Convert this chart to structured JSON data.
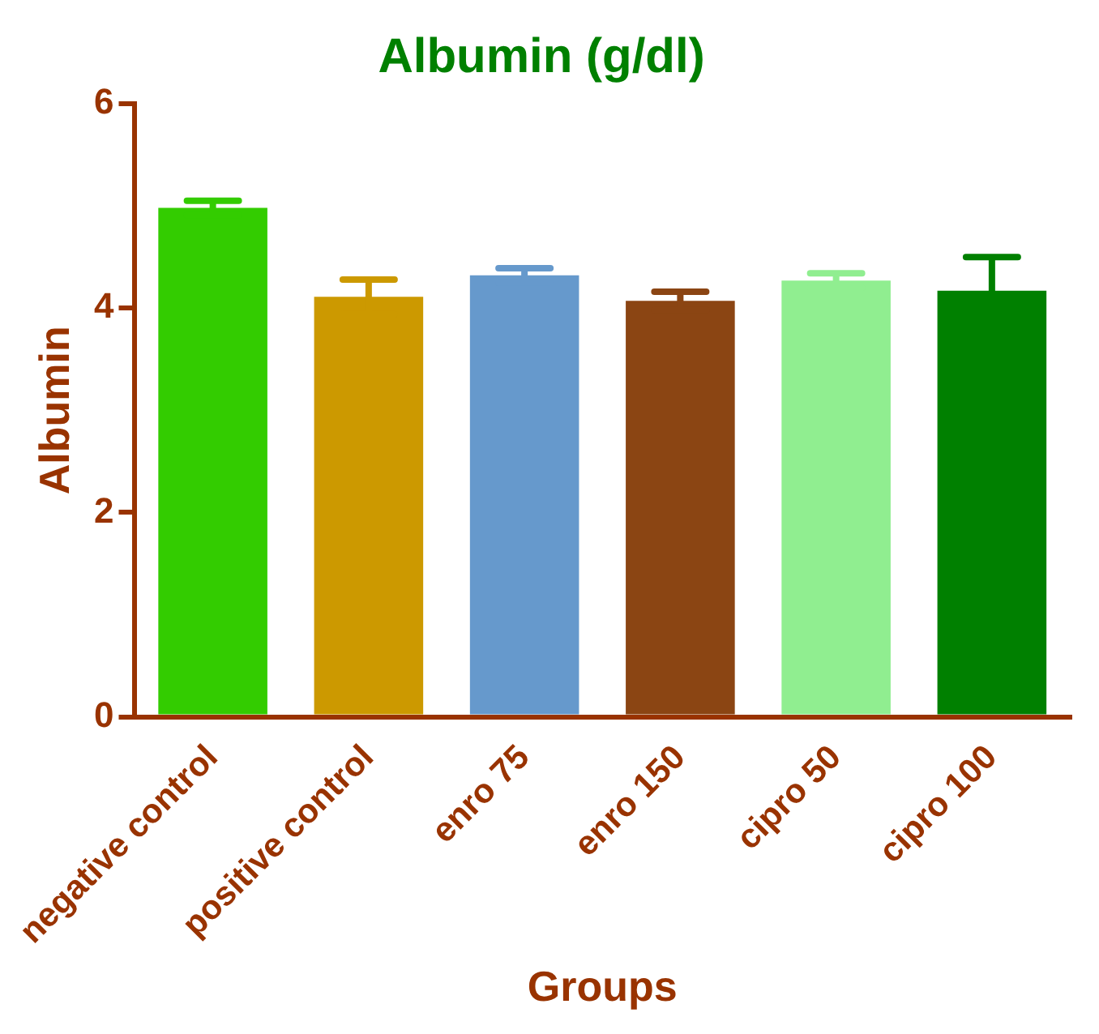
{
  "chart_data": {
    "type": "bar",
    "title": "Albumin (g/dl)",
    "xlabel": "Groups",
    "ylabel": "Albumin",
    "categories": [
      "negative control",
      "positive control",
      "enro 75",
      "enro 150",
      "cipro 50",
      "cipro 100"
    ],
    "values": [
      4.98,
      4.11,
      4.32,
      4.07,
      4.27,
      4.17
    ],
    "errors": [
      0.07,
      0.17,
      0.07,
      0.09,
      0.07,
      0.33
    ],
    "colors": [
      "#33cc00",
      "#cc9900",
      "#6699cc",
      "#8b4513",
      "#90ee90",
      "#008000"
    ],
    "ylim": [
      0,
      6
    ],
    "yticks": [
      0,
      2,
      4,
      6
    ],
    "grid": false,
    "legend": false
  }
}
